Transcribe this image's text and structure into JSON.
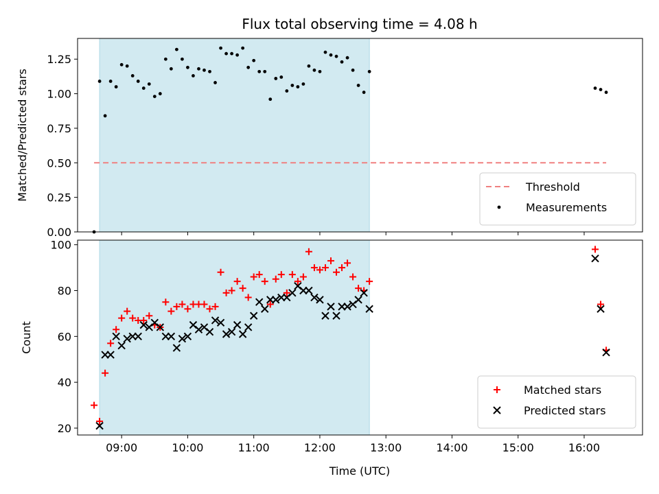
{
  "chart_data": {
    "type": "scatter",
    "title": "Flux total observing time = 4.08 h",
    "xlabel": "Time (UTC)",
    "xlim": [
      "08:20",
      "16:53"
    ],
    "x_ticks": [
      "09:00",
      "10:00",
      "11:00",
      "12:00",
      "13:00",
      "14:00",
      "15:00",
      "16:00"
    ],
    "shaded_span": {
      "start": "08:40",
      "end": "12:45",
      "color": "#add8e6"
    },
    "panels": [
      {
        "id": "ratio",
        "ylabel": "Matched/Predicted stars",
        "ylim": [
          0,
          1.4
        ],
        "y_ticks": [
          "0.00",
          "0.25",
          "0.50",
          "0.75",
          "1.00",
          "1.25"
        ],
        "threshold": {
          "name": "Threshold",
          "value": 0.5,
          "x_start": "08:35",
          "x_end": "16:20",
          "color": "#f08080",
          "style": "dashed"
        },
        "legend": {
          "position": "lower right",
          "entries": [
            "Threshold",
            "Measurements"
          ]
        },
        "series": [
          {
            "name": "Measurements",
            "marker": "dot",
            "color": "#000000",
            "points": [
              [
                "08:35",
                0.0
              ],
              [
                "08:40",
                1.09
              ],
              [
                "08:45",
                0.84
              ],
              [
                "08:50",
                1.09
              ],
              [
                "08:55",
                1.05
              ],
              [
                "09:00",
                1.21
              ],
              [
                "09:05",
                1.2
              ],
              [
                "09:10",
                1.13
              ],
              [
                "09:15",
                1.09
              ],
              [
                "09:20",
                1.04
              ],
              [
                "09:25",
                1.07
              ],
              [
                "09:30",
                0.98
              ],
              [
                "09:35",
                1.0
              ],
              [
                "09:40",
                1.25
              ],
              [
                "09:45",
                1.18
              ],
              [
                "09:50",
                1.32
              ],
              [
                "09:55",
                1.25
              ],
              [
                "10:00",
                1.19
              ],
              [
                "10:05",
                1.13
              ],
              [
                "10:10",
                1.18
              ],
              [
                "10:15",
                1.17
              ],
              [
                "10:20",
                1.16
              ],
              [
                "10:25",
                1.08
              ],
              [
                "10:30",
                1.33
              ],
              [
                "10:35",
                1.29
              ],
              [
                "10:40",
                1.29
              ],
              [
                "10:45",
                1.28
              ],
              [
                "10:50",
                1.33
              ],
              [
                "10:55",
                1.19
              ],
              [
                "11:00",
                1.24
              ],
              [
                "11:05",
                1.16
              ],
              [
                "11:10",
                1.16
              ],
              [
                "11:15",
                0.96
              ],
              [
                "11:20",
                1.11
              ],
              [
                "11:25",
                1.12
              ],
              [
                "11:30",
                1.02
              ],
              [
                "11:35",
                1.06
              ],
              [
                "11:40",
                1.05
              ],
              [
                "11:45",
                1.07
              ],
              [
                "11:50",
                1.2
              ],
              [
                "11:55",
                1.17
              ],
              [
                "12:00",
                1.16
              ],
              [
                "12:05",
                1.3
              ],
              [
                "12:10",
                1.28
              ],
              [
                "12:15",
                1.27
              ],
              [
                "12:20",
                1.23
              ],
              [
                "12:25",
                1.26
              ],
              [
                "12:30",
                1.17
              ],
              [
                "12:35",
                1.06
              ],
              [
                "12:40",
                1.01
              ],
              [
                "12:45",
                1.16
              ],
              [
                "16:10",
                1.04
              ],
              [
                "16:15",
                1.03
              ],
              [
                "16:20",
                1.01
              ]
            ]
          }
        ]
      },
      {
        "id": "counts",
        "ylabel": "Count",
        "ylim": [
          17,
          102
        ],
        "y_ticks": [
          "20",
          "40",
          "60",
          "80",
          "100"
        ],
        "legend": {
          "position": "lower right",
          "entries": [
            "Matched stars",
            "Predicted stars"
          ]
        },
        "series": [
          {
            "name": "Matched stars",
            "marker": "plus",
            "color": "#ff0000",
            "points": [
              [
                "08:35",
                30
              ],
              [
                "08:40",
                23
              ],
              [
                "08:45",
                44
              ],
              [
                "08:50",
                57
              ],
              [
                "08:55",
                63
              ],
              [
                "09:00",
                68
              ],
              [
                "09:05",
                71
              ],
              [
                "09:10",
                68
              ],
              [
                "09:15",
                67
              ],
              [
                "09:20",
                67
              ],
              [
                "09:25",
                69
              ],
              [
                "09:30",
                65
              ],
              [
                "09:35",
                64
              ],
              [
                "09:40",
                75
              ],
              [
                "09:45",
                71
              ],
              [
                "09:50",
                73
              ],
              [
                "09:55",
                74
              ],
              [
                "10:00",
                72
              ],
              [
                "10:05",
                74
              ],
              [
                "10:10",
                74
              ],
              [
                "10:15",
                74
              ],
              [
                "10:20",
                72
              ],
              [
                "10:25",
                73
              ],
              [
                "10:30",
                88
              ],
              [
                "10:35",
                79
              ],
              [
                "10:40",
                80
              ],
              [
                "10:45",
                84
              ],
              [
                "10:50",
                81
              ],
              [
                "10:55",
                77
              ],
              [
                "11:00",
                86
              ],
              [
                "11:05",
                87
              ],
              [
                "11:10",
                84
              ],
              [
                "11:15",
                74
              ],
              [
                "11:20",
                85
              ],
              [
                "11:25",
                87
              ],
              [
                "11:30",
                79
              ],
              [
                "11:35",
                87
              ],
              [
                "11:40",
                84
              ],
              [
                "11:45",
                86
              ],
              [
                "11:50",
                97
              ],
              [
                "11:55",
                90
              ],
              [
                "12:00",
                89
              ],
              [
                "12:05",
                90
              ],
              [
                "12:10",
                93
              ],
              [
                "12:15",
                88
              ],
              [
                "12:20",
                90
              ],
              [
                "12:25",
                92
              ],
              [
                "12:30",
                86
              ],
              [
                "12:35",
                81
              ],
              [
                "12:40",
                80
              ],
              [
                "12:45",
                84
              ],
              [
                "16:10",
                98
              ],
              [
                "16:15",
                74
              ],
              [
                "16:20",
                54
              ]
            ]
          },
          {
            "name": "Predicted stars",
            "marker": "x",
            "color": "#000000",
            "points": [
              [
                "08:40",
                21
              ],
              [
                "08:45",
                52
              ],
              [
                "08:50",
                52
              ],
              [
                "08:55",
                60
              ],
              [
                "09:00",
                56
              ],
              [
                "09:05",
                59
              ],
              [
                "09:10",
                60
              ],
              [
                "09:15",
                60
              ],
              [
                "09:20",
                65
              ],
              [
                "09:25",
                64
              ],
              [
                "09:30",
                66
              ],
              [
                "09:35",
                64
              ],
              [
                "09:40",
                60
              ],
              [
                "09:45",
                60
              ],
              [
                "09:50",
                55
              ],
              [
                "09:55",
                59
              ],
              [
                "10:00",
                60
              ],
              [
                "10:05",
                65
              ],
              [
                "10:10",
                63
              ],
              [
                "10:15",
                64
              ],
              [
                "10:20",
                62
              ],
              [
                "10:25",
                67
              ],
              [
                "10:30",
                66
              ],
              [
                "10:35",
                61
              ],
              [
                "10:40",
                62
              ],
              [
                "10:45",
                65
              ],
              [
                "10:50",
                61
              ],
              [
                "10:55",
                64
              ],
              [
                "11:00",
                69
              ],
              [
                "11:05",
                75
              ],
              [
                "11:10",
                72
              ],
              [
                "11:15",
                76
              ],
              [
                "11:20",
                76
              ],
              [
                "11:25",
                77
              ],
              [
                "11:30",
                77
              ],
              [
                "11:35",
                79
              ],
              [
                "11:40",
                82
              ],
              [
                "11:45",
                80
              ],
              [
                "11:50",
                80
              ],
              [
                "11:55",
                77
              ],
              [
                "12:00",
                76
              ],
              [
                "12:05",
                69
              ],
              [
                "12:10",
                73
              ],
              [
                "12:15",
                69
              ],
              [
                "12:20",
                73
              ],
              [
                "12:25",
                73
              ],
              [
                "12:30",
                74
              ],
              [
                "12:35",
                76
              ],
              [
                "12:40",
                79
              ],
              [
                "12:45",
                72
              ],
              [
                "16:10",
                94
              ],
              [
                "16:15",
                72
              ],
              [
                "16:20",
                53
              ]
            ]
          }
        ]
      }
    ]
  }
}
